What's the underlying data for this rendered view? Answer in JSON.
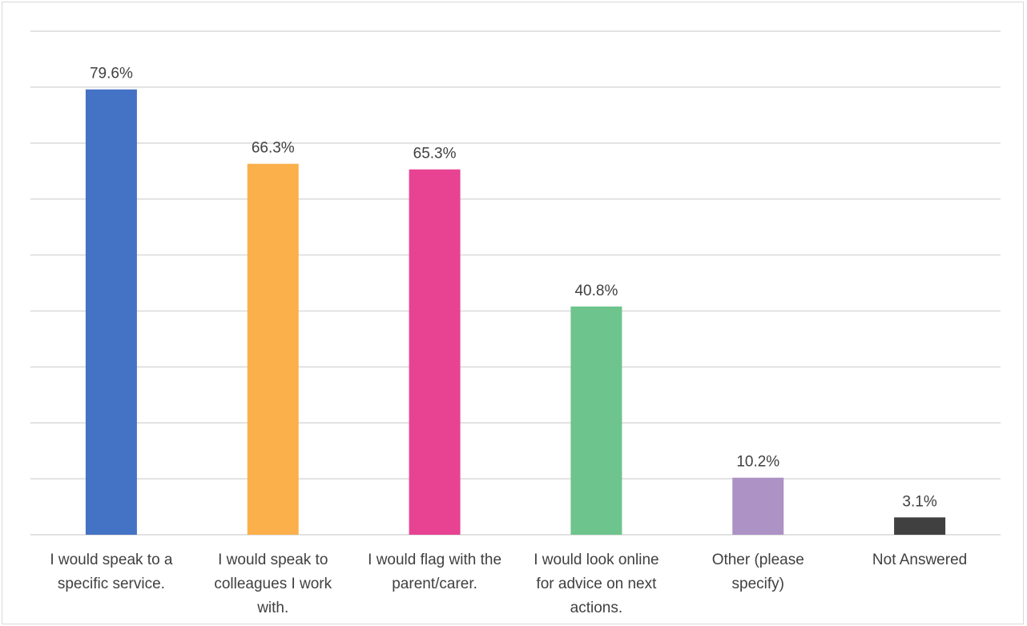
{
  "chart_data": {
    "type": "bar",
    "title": "",
    "xlabel": "",
    "ylabel": "",
    "ylim": [
      0,
      90
    ],
    "grid": true,
    "legend": "none",
    "categories": [
      [
        "I would speak to a",
        "specific service."
      ],
      [
        "I would speak to",
        "colleagues I work",
        "with."
      ],
      [
        "I would flag with the",
        "parent/carer."
      ],
      [
        "I would look online",
        "for advice on next",
        "actions."
      ],
      [
        "Other (please",
        "specify)"
      ],
      [
        "Not Answered"
      ]
    ],
    "values": [
      79.6,
      66.3,
      65.3,
      40.8,
      10.2,
      3.1
    ],
    "value_labels": [
      "79.6%",
      "66.3%",
      "65.3%",
      "40.8%",
      "10.2%",
      "3.1%"
    ],
    "colors": [
      "#4472c4",
      "#fbb04b",
      "#e84393",
      "#6dc48c",
      "#ad92c5",
      "#404040"
    ]
  }
}
